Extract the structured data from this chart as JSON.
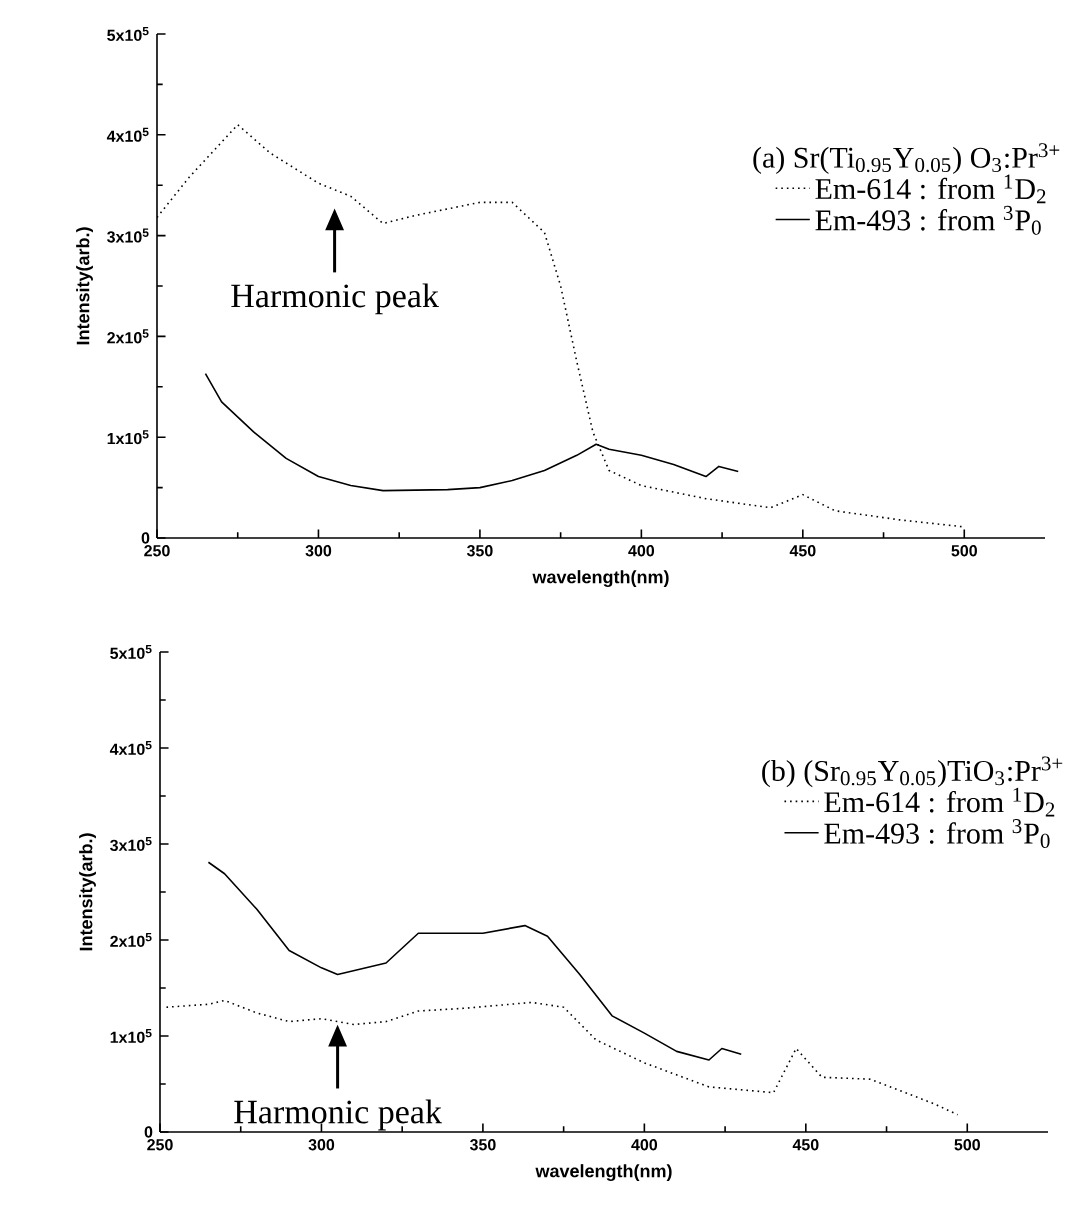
{
  "chart_data": [
    {
      "type": "line",
      "xlabel": "wavelength(nm)",
      "ylabel": "Intensity(arb.)",
      "legend_title": "(a) Sr(Ti$_{0.95}$Y$_{0.05}$) O$_{3}$:Pr$^{3+}$",
      "legend": "top right",
      "xlim": [
        250,
        525
      ],
      "ylim": [
        0,
        500000
      ],
      "xticks": [
        250,
        300,
        350,
        400,
        450,
        500
      ],
      "yticks": [
        {
          "value": 0,
          "label": "0"
        },
        {
          "value": 100000,
          "label": "1x10$^{5}$"
        },
        {
          "value": 200000,
          "label": "2x10$^{5}$"
        },
        {
          "value": 300000,
          "label": "3x10$^{5}$"
        },
        {
          "value": 400000,
          "label": "4x10$^{5}$"
        },
        {
          "value": 500000,
          "label": "5x10$^{5}$"
        }
      ],
      "annotations": [
        "Harmonic peak"
      ],
      "series": [
        {
          "name": "Em-614 : from $^{1}$D$_{2}$",
          "color": "#000000",
          "line_style": "dotted",
          "x": [
            250,
            260,
            275,
            285,
            300,
            310,
            320,
            330,
            350,
            360,
            370,
            375,
            380,
            385,
            390,
            400,
            420,
            440,
            450,
            460,
            480,
            500
          ],
          "values": [
            318000,
            358000,
            410000,
            382000,
            352000,
            339000,
            312000,
            320000,
            333000,
            333000,
            303000,
            250000,
            175000,
            105000,
            67000,
            52000,
            39000,
            30000,
            43000,
            27000,
            18000,
            11000
          ]
        },
        {
          "name": "Em-493 : from $^{3}$P$_{0}$",
          "color": "#000000",
          "line_style": "solid",
          "x": [
            265,
            270,
            280,
            290,
            300,
            310,
            320,
            340,
            350,
            360,
            370,
            380,
            386,
            390,
            400,
            410,
            420,
            424,
            430
          ],
          "values": [
            163000,
            135000,
            105000,
            79000,
            61000,
            52000,
            47000,
            48000,
            50000,
            57000,
            67000,
            82000,
            93000,
            88000,
            82000,
            73000,
            61000,
            71000,
            66000
          ]
        }
      ]
    },
    {
      "type": "line",
      "xlabel": "wavelength(nm)",
      "ylabel": "Intensity(arb.)",
      "legend_title": "(b) (Sr$_{0.95}$Y$_{0.05}$)TiO$_{3}$:Pr$^{3+}$",
      "legend": "top right",
      "xlim": [
        250,
        525
      ],
      "ylim": [
        0,
        500000
      ],
      "xticks": [
        250,
        300,
        350,
        400,
        450,
        500
      ],
      "yticks": [
        {
          "value": 0,
          "label": "0"
        },
        {
          "value": 100000,
          "label": "1x10$^{5}$"
        },
        {
          "value": 200000,
          "label": "2x10$^{5}$"
        },
        {
          "value": 300000,
          "label": "3x10$^{5}$"
        },
        {
          "value": 400000,
          "label": "4x10$^{5}$"
        },
        {
          "value": 500000,
          "label": "5x10$^{5}$"
        }
      ],
      "annotations": [
        "Harmonic peak"
      ],
      "series": [
        {
          "name": "Em-614 : from $^{1}$D$_{2}$",
          "color": "#000000",
          "line_style": "dotted",
          "x": [
            252,
            265,
            270,
            280,
            290,
            300,
            310,
            320,
            330,
            345,
            365,
            375,
            385,
            400,
            420,
            440,
            447,
            455,
            470,
            490,
            497
          ],
          "values": [
            130000,
            133000,
            137000,
            124000,
            115000,
            118000,
            112000,
            115000,
            126000,
            129000,
            135000,
            130000,
            96000,
            72000,
            47000,
            41000,
            87000,
            57000,
            55000,
            29000,
            18000
          ]
        },
        {
          "name": "Em-493 : from $^{3}$P$_{0}$",
          "color": "#000000",
          "line_style": "solid",
          "x": [
            265,
            270,
            280,
            290,
            300,
            305,
            320,
            330,
            350,
            363,
            370,
            380,
            390,
            400,
            410,
            420,
            424,
            430
          ],
          "values": [
            281000,
            269000,
            232000,
            189000,
            171000,
            164000,
            176000,
            207000,
            207000,
            215000,
            204000,
            164000,
            121000,
            103000,
            84000,
            75000,
            87000,
            81000
          ]
        }
      ]
    }
  ]
}
